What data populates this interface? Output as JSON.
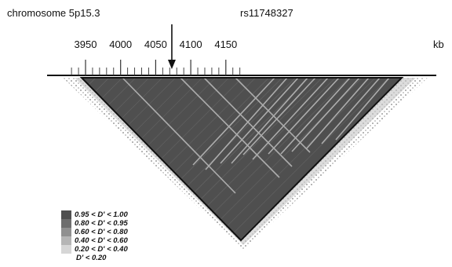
{
  "title": "chromosome 5p15.3",
  "snp": {
    "label": "rs11748327",
    "position_kb": 4073
  },
  "axis": {
    "unit": "kb",
    "ticks": [
      {
        "label": "3950",
        "value": 3950
      },
      {
        "label": "4000",
        "value": 4000
      },
      {
        "label": "4050",
        "value": 4050
      },
      {
        "label": "4100",
        "value": 4100
      },
      {
        "label": "4150",
        "value": 4150
      }
    ]
  },
  "colors": {
    "level1": "#4f4f4f",
    "level2": "#6e6e6e",
    "level3": "#909090",
    "level4": "#b5b5b5",
    "level5": "#d6d6d6",
    "level6": "#ffffff"
  },
  "legend": [
    {
      "label": "0.95 < D' < 1.00",
      "color": "#4f4f4f"
    },
    {
      "label": "0.80 < D' < 0.95",
      "color": "#6e6e6e"
    },
    {
      "label": "0.60 < D' < 0.80",
      "color": "#909090"
    },
    {
      "label": "0.40 < D' < 0.60",
      "color": "#b5b5b5"
    },
    {
      "label": "0.20 < D' < 0.40",
      "color": "#d6d6d6"
    },
    {
      "label": "D' < 0.20",
      "color": "#ffffff"
    }
  ]
}
